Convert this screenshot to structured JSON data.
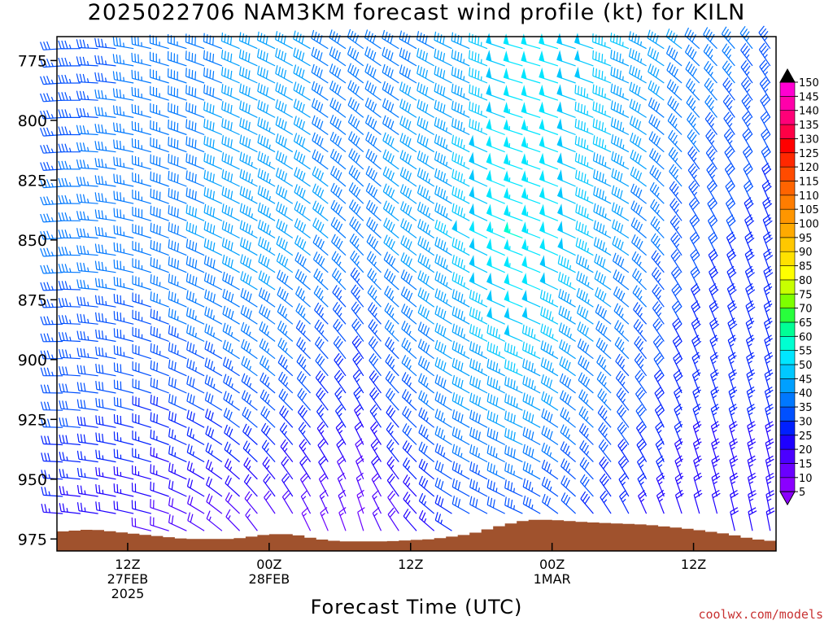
{
  "chart_data": {
    "type": "wind-barb-profile",
    "title": "2025022706 NAM3KM forecast wind profile (kt) for KILN",
    "xlabel": "Forecast Time (UTC)",
    "credit": "coolwx.com/models",
    "y_axis": {
      "ylim": [
        980,
        765
      ],
      "ticks": [
        {
          "value": 775,
          "label": "775"
        },
        {
          "value": 800,
          "label": "800"
        },
        {
          "value": 825,
          "label": "825"
        },
        {
          "value": 850,
          "label": "850"
        },
        {
          "value": 875,
          "label": "875"
        },
        {
          "value": 900,
          "label": "900"
        },
        {
          "value": 925,
          "label": "925"
        },
        {
          "value": 950,
          "label": "950"
        },
        {
          "value": 975,
          "label": "975"
        }
      ]
    },
    "x_axis": {
      "start": "2025-02-27 06Z",
      "end": "2025-03-01 19Z",
      "ticks": [
        {
          "time": "2025-02-27 12Z",
          "lines": [
            "12Z",
            "27FEB",
            "2025"
          ]
        },
        {
          "time": "2025-02-28 00Z",
          "lines": [
            "00Z",
            "28FEB"
          ]
        },
        {
          "time": "2025-02-28 12Z",
          "lines": [
            "12Z"
          ]
        },
        {
          "time": "2025-03-01 00Z",
          "lines": [
            "00Z",
            "1MAR"
          ]
        },
        {
          "time": "2025-03-01 12Z",
          "lines": [
            "12Z"
          ]
        }
      ]
    },
    "colorbar": {
      "unit": "kt",
      "levels": [
        "5",
        "10",
        "15",
        "20",
        "25",
        "30",
        "35",
        "40",
        "45",
        "50",
        "55",
        "60",
        "65",
        "70",
        "75",
        "80",
        "85",
        "90",
        "95",
        "100",
        "105",
        "110",
        "115",
        "120",
        "125",
        "130",
        "135",
        "140",
        "145",
        "150"
      ],
      "colors": [
        "#8b00ff",
        "#6a00ff",
        "#4b00ff",
        "#1e00ff",
        "#0020ff",
        "#0050ff",
        "#0078ff",
        "#00a0ff",
        "#00c8ff",
        "#00e6ff",
        "#00ffd2",
        "#00ff96",
        "#28ff3c",
        "#7dff00",
        "#c8ff00",
        "#ffff00",
        "#ffe100",
        "#ffc800",
        "#ffaa00",
        "#ff9600",
        "#ff7d00",
        "#ff6400",
        "#ff4b00",
        "#ff2800",
        "#ff0000",
        "#ff0046",
        "#ff0078",
        "#ff00aa",
        "#ff00d2",
        "#ff00ff"
      ]
    },
    "terrain": {
      "color": "#a0522d",
      "surface_pressure": [
        {
          "time": "2025-02-27 06Z",
          "p": 972
        },
        {
          "time": "2025-02-27 09Z",
          "p": 971
        },
        {
          "time": "2025-02-27 13Z",
          "p": 973
        },
        {
          "time": "2025-02-27 17Z",
          "p": 975
        },
        {
          "time": "2025-02-27 21Z",
          "p": 975
        },
        {
          "time": "2025-02-28 00Z",
          "p": 973
        },
        {
          "time": "2025-02-28 02Z",
          "p": 973
        },
        {
          "time": "2025-02-28 04Z",
          "p": 975
        },
        {
          "time": "2025-02-28 06Z",
          "p": 976
        },
        {
          "time": "2025-02-28 10Z",
          "p": 976
        },
        {
          "time": "2025-02-28 14Z",
          "p": 975
        },
        {
          "time": "2025-02-28 17Z",
          "p": 973
        },
        {
          "time": "2025-02-28 20Z",
          "p": 969
        },
        {
          "time": "2025-02-28 22Z",
          "p": 967
        },
        {
          "time": "2025-03-01 00Z",
          "p": 967
        },
        {
          "time": "2025-03-01 03Z",
          "p": 968
        },
        {
          "time": "2025-03-01 08Z",
          "p": 969
        },
        {
          "time": "2025-03-01 12Z",
          "p": 971
        },
        {
          "time": "2025-03-01 15Z",
          "p": 973
        },
        {
          "time": "2025-03-01 17Z",
          "p": 975
        },
        {
          "time": "2025-03-01 19Z",
          "p": 976
        }
      ]
    },
    "wind_field_nodes": [
      {
        "time": "2025-02-27 06Z",
        "dir": [
          265,
          265,
          270,
          275
        ],
        "spd": [
          32,
          36,
          32,
          22
        ]
      },
      {
        "time": "2025-02-27 15Z",
        "dir": [
          285,
          290,
          290,
          285
        ],
        "spd": [
          36,
          38,
          30,
          16
        ]
      },
      {
        "time": "2025-02-28 00Z",
        "dir": [
          295,
          300,
          310,
          330
        ],
        "spd": [
          42,
          44,
          34,
          14
        ]
      },
      {
        "time": "2025-02-28 08Z",
        "dir": [
          305,
          315,
          330,
          345
        ],
        "spd": [
          38,
          38,
          26,
          10
        ]
      },
      {
        "time": "2025-02-28 16Z",
        "dir": [
          295,
          300,
          300,
          300
        ],
        "spd": [
          40,
          46,
          40,
          26
        ]
      },
      {
        "time": "2025-02-28 22Z",
        "dir": [
          285,
          290,
          295,
          295
        ],
        "spd": [
          52,
          56,
          44,
          30
        ]
      },
      {
        "time": "2025-03-01 06Z",
        "dir": [
          290,
          300,
          320,
          335
        ],
        "spd": [
          46,
          42,
          34,
          24
        ]
      },
      {
        "time": "2025-03-01 12Z",
        "dir": [
          310,
          330,
          340,
          345
        ],
        "spd": [
          40,
          32,
          26,
          20
        ]
      },
      {
        "time": "2025-03-01 19Z",
        "dir": [
          325,
          340,
          345,
          350
        ],
        "spd": [
          34,
          28,
          26,
          22
        ]
      }
    ],
    "wind_field_levels": [
      765,
      850,
      920,
      980
    ]
  }
}
